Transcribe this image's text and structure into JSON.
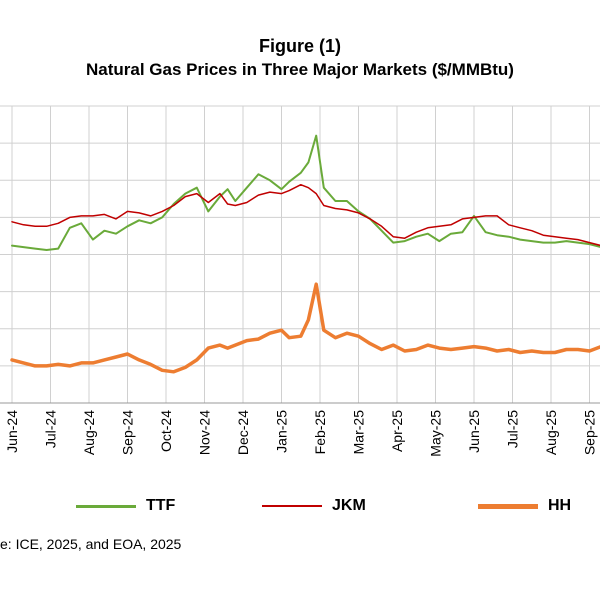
{
  "chart_data": {
    "type": "line",
    "title": "Figure (1)",
    "subtitle": "Natural Gas Prices in Three Major Markets ($/MMBtu)",
    "x_tick_labels": [
      "Jun-24",
      "Jul-24",
      "Aug-24",
      "Sep-24",
      "Oct-24",
      "Nov-24",
      "Dec-24",
      "Jan-25",
      "Feb-25",
      "Mar-25",
      "Apr-25",
      "May-25",
      "Jun-25",
      "Jul-25",
      "Aug-25",
      "Sep-25"
    ],
    "y_axis_labels_visible": false,
    "ylim": [
      0,
      20
    ],
    "grid": true,
    "legend_position": "bottom",
    "series": [
      {
        "name": "TTF",
        "color": "#6aaa3a",
        "x": [
          0,
          0.3,
          0.6,
          0.9,
          1.2,
          1.5,
          1.8,
          2.1,
          2.4,
          2.7,
          3.0,
          3.3,
          3.6,
          3.9,
          4.2,
          4.5,
          4.8,
          5.1,
          5.4,
          5.6,
          5.8,
          6.1,
          6.4,
          6.7,
          7.0,
          7.2,
          7.5,
          7.7,
          7.9,
          8.1,
          8.4,
          8.7,
          9.0,
          9.3,
          9.6,
          9.9,
          10.2,
          10.5,
          10.8,
          11.1,
          11.4,
          11.7,
          12.0,
          12.3,
          12.6,
          12.9,
          13.2,
          13.5,
          13.8,
          14.1,
          14.4,
          14.7,
          15.0,
          15.3
        ],
        "values": [
          10.6,
          10.5,
          10.4,
          10.3,
          10.4,
          11.8,
          12.1,
          11.0,
          11.6,
          11.4,
          11.9,
          12.3,
          12.1,
          12.5,
          13.4,
          14.1,
          14.5,
          12.9,
          13.9,
          14.4,
          13.6,
          14.5,
          15.4,
          15.0,
          14.4,
          14.9,
          15.5,
          16.2,
          18.0,
          14.5,
          13.6,
          13.6,
          12.9,
          12.4,
          11.6,
          10.8,
          10.9,
          11.2,
          11.4,
          10.9,
          11.4,
          11.5,
          12.6,
          11.5,
          11.3,
          11.2,
          11.0,
          10.9,
          10.8,
          10.8,
          10.9,
          10.8,
          10.7,
          10.5
        ]
      },
      {
        "name": "JKM",
        "color": "#c00000",
        "x": [
          0,
          0.3,
          0.6,
          0.9,
          1.2,
          1.5,
          1.8,
          2.1,
          2.4,
          2.7,
          3.0,
          3.3,
          3.6,
          3.9,
          4.2,
          4.5,
          4.8,
          5.1,
          5.4,
          5.6,
          5.8,
          6.1,
          6.4,
          6.7,
          7.0,
          7.2,
          7.5,
          7.7,
          7.9,
          8.1,
          8.4,
          8.7,
          9.0,
          9.3,
          9.6,
          9.9,
          10.2,
          10.5,
          10.8,
          11.1,
          11.4,
          11.7,
          12.0,
          12.3,
          12.6,
          12.9,
          13.2,
          13.5,
          13.8,
          14.1,
          14.4,
          14.7,
          15.0,
          15.3
        ],
        "values": [
          12.2,
          12.0,
          11.9,
          11.9,
          12.1,
          12.5,
          12.6,
          12.6,
          12.7,
          12.4,
          12.9,
          12.8,
          12.6,
          12.9,
          13.3,
          13.9,
          14.1,
          13.5,
          14.1,
          13.4,
          13.3,
          13.5,
          14.0,
          14.2,
          14.1,
          14.3,
          14.7,
          14.5,
          14.1,
          13.3,
          13.1,
          13.0,
          12.8,
          12.4,
          11.9,
          11.2,
          11.1,
          11.5,
          11.8,
          11.9,
          12.0,
          12.4,
          12.5,
          12.6,
          12.6,
          12.0,
          11.8,
          11.6,
          11.3,
          11.2,
          11.1,
          11.0,
          10.8,
          10.6
        ]
      },
      {
        "name": "HH",
        "color": "#ed7d31",
        "x": [
          0,
          0.3,
          0.6,
          0.9,
          1.2,
          1.5,
          1.8,
          2.1,
          2.4,
          2.7,
          3.0,
          3.3,
          3.6,
          3.9,
          4.2,
          4.5,
          4.8,
          5.1,
          5.4,
          5.6,
          5.8,
          6.1,
          6.4,
          6.7,
          7.0,
          7.2,
          7.5,
          7.7,
          7.9,
          8.1,
          8.4,
          8.7,
          9.0,
          9.3,
          9.6,
          9.9,
          10.2,
          10.5,
          10.8,
          11.1,
          11.4,
          11.7,
          12.0,
          12.3,
          12.6,
          12.9,
          13.2,
          13.5,
          13.8,
          14.1,
          14.4,
          14.7,
          15.0,
          15.3
        ],
        "values": [
          2.9,
          2.7,
          2.5,
          2.5,
          2.6,
          2.5,
          2.7,
          2.7,
          2.9,
          3.1,
          3.3,
          2.9,
          2.6,
          2.2,
          2.1,
          2.4,
          2.9,
          3.7,
          3.9,
          3.7,
          3.9,
          4.2,
          4.3,
          4.7,
          4.9,
          4.4,
          4.5,
          5.6,
          8.0,
          4.9,
          4.4,
          4.7,
          4.5,
          4.0,
          3.6,
          3.9,
          3.5,
          3.6,
          3.9,
          3.7,
          3.6,
          3.7,
          3.8,
          3.7,
          3.5,
          3.6,
          3.4,
          3.5,
          3.4,
          3.4,
          3.6,
          3.6,
          3.5,
          3.8
        ]
      }
    ]
  },
  "legend": {
    "items": [
      {
        "label": "TTF",
        "color": "#6aaa3a"
      },
      {
        "label": "JKM",
        "color": "#c00000"
      },
      {
        "label": "HH",
        "color": "#ed7d31"
      }
    ]
  },
  "source_note": "e: ICE, 2025, and EOA, 2025"
}
